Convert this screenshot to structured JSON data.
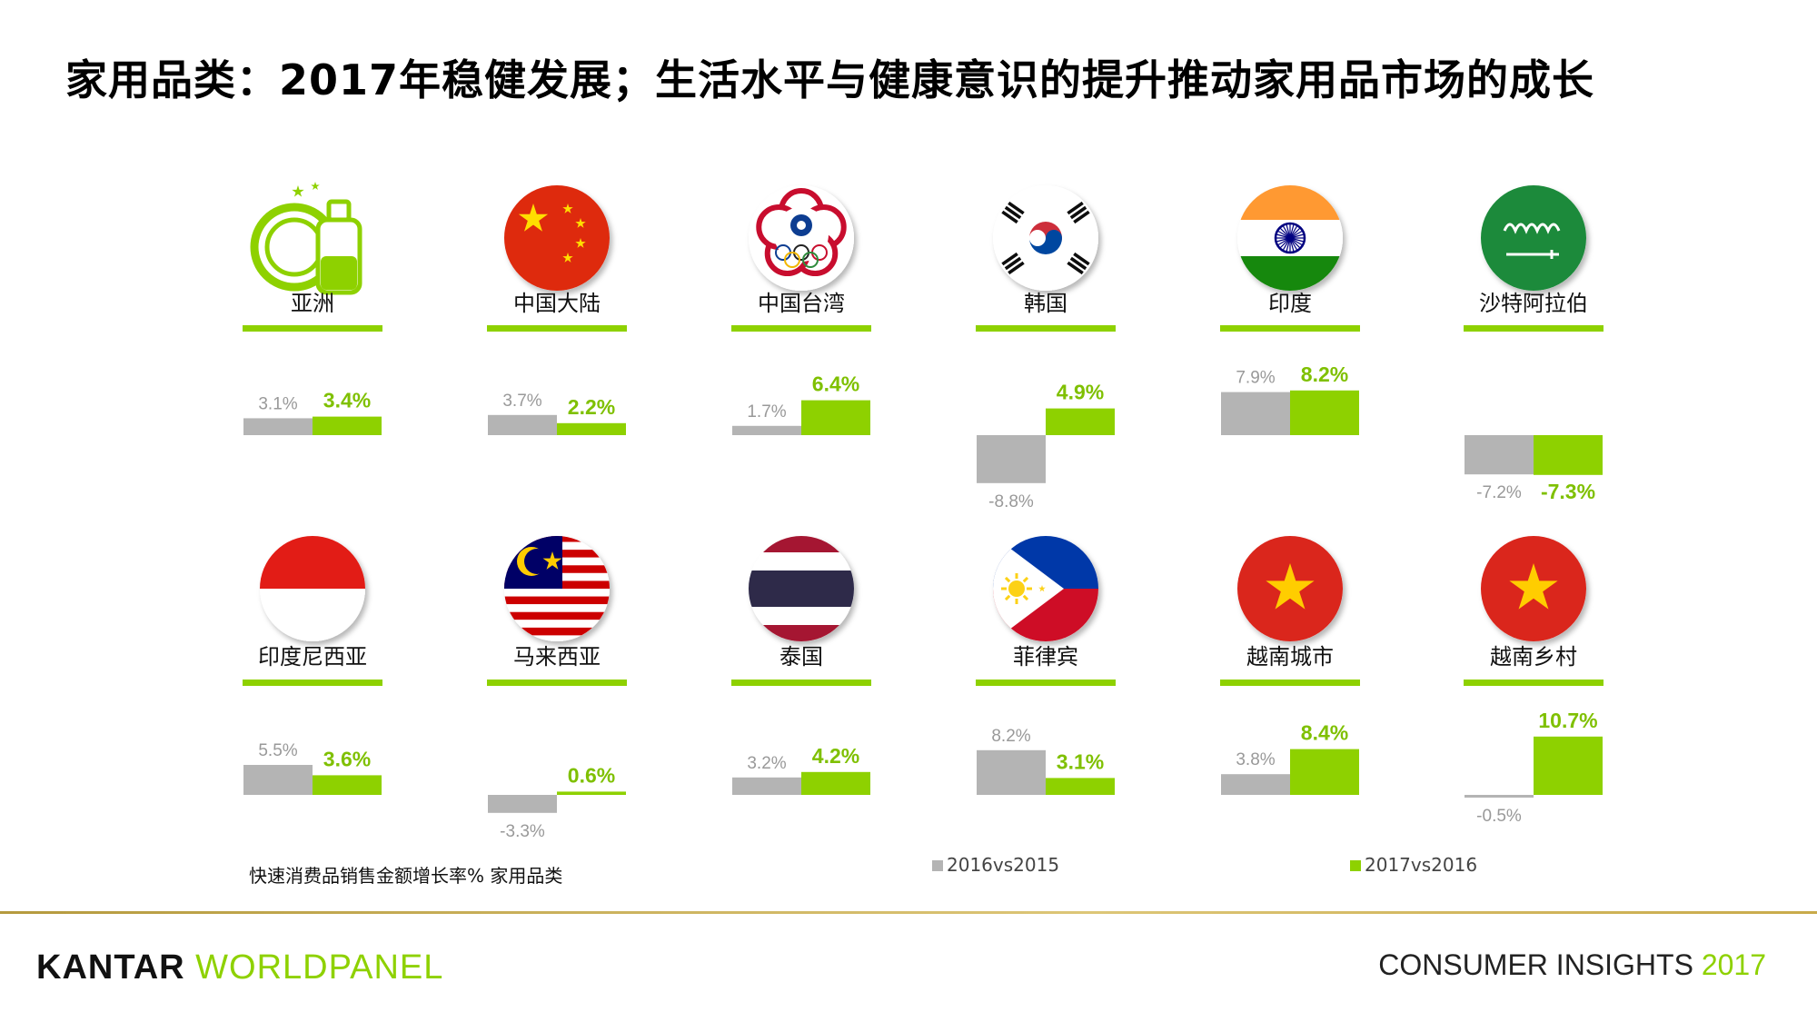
{
  "title": "家用品类：2017年稳健发展；生活水平与健康意识的提升推动家用品市场的成长",
  "footnote": "快速消费品销售金额增长率% 家用品类",
  "brand": {
    "part1": "KANTAR",
    "part2": "WORLDPANEL"
  },
  "footer_right": {
    "text": "CONSUMER INSIGHTS",
    "year": "2017"
  },
  "colors": {
    "accent": "#8ed100",
    "grey": "#b4b4b4"
  },
  "chart_data": {
    "type": "bar",
    "series": [
      {
        "name": "2016vs2015",
        "color": "#b4b4b4",
        "values": [
          3.1,
          3.7,
          1.7,
          -8.8,
          7.9,
          -7.2,
          5.5,
          -3.3,
          3.2,
          8.2,
          3.8,
          -0.5
        ],
        "labels": [
          "3.1%",
          "3.7%",
          "1.7%",
          "-8.8%",
          "7.9%",
          "-7.2%",
          "5.5%",
          "-3.3%",
          "3.2%",
          "8.2%",
          "3.8%",
          "-0.5%"
        ]
      },
      {
        "name": "2017vs2016",
        "color": "#8ed100",
        "values": [
          3.4,
          2.2,
          6.4,
          4.9,
          8.2,
          -7.3,
          3.6,
          0.6,
          4.2,
          3.1,
          8.4,
          10.7
        ],
        "labels": [
          "3.4%",
          "2.2%",
          "6.4%",
          "4.9%",
          "8.2%",
          "-7.3%",
          "3.6%",
          "0.6%",
          "4.2%",
          "3.1%",
          "8.4%",
          "10.7%"
        ]
      }
    ],
    "panels": [
      {
        "name": "亚洲",
        "icon": "household-products-icon"
      },
      {
        "name": "中国大陆",
        "icon": "china-flag-icon"
      },
      {
        "name": "中国台湾",
        "icon": "chinese-taipei-flag-icon"
      },
      {
        "name": "韩国",
        "icon": "korea-flag-icon"
      },
      {
        "name": "印度",
        "icon": "india-flag-icon"
      },
      {
        "name": "沙特阿拉伯",
        "icon": "saudi-arabia-flag-icon"
      },
      {
        "name": "印度尼西亚",
        "icon": "indonesia-flag-icon"
      },
      {
        "name": "马来西亚",
        "icon": "malaysia-flag-icon"
      },
      {
        "name": "泰国",
        "icon": "thailand-flag-icon"
      },
      {
        "name": "菲律宾",
        "icon": "philippines-flag-icon"
      },
      {
        "name": "越南城市",
        "icon": "vietnam-flag-icon"
      },
      {
        "name": "越南乡村",
        "icon": "vietnam-flag-icon"
      }
    ]
  }
}
